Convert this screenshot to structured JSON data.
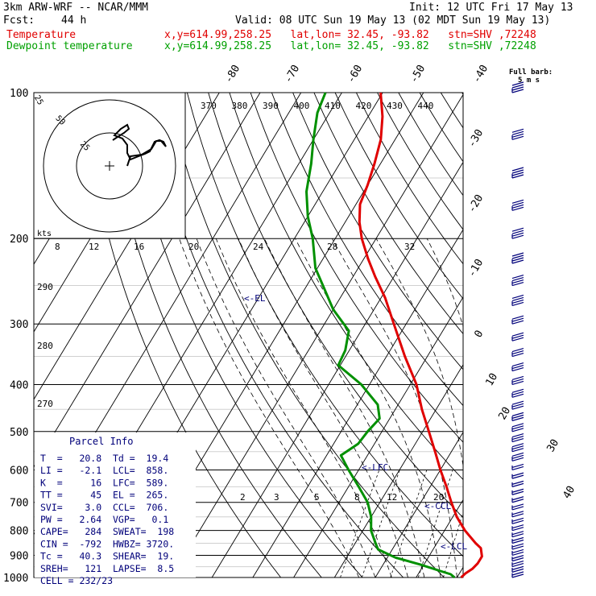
{
  "header": {
    "model": "3km ARW-WRF -- NCAR/MMM",
    "init": "Init: 12 UTC Fri 17 May 13",
    "fcst_label": "Fcst:",
    "fcst_value": "44 h",
    "valid": "Valid: 08 UTC Sun 19 May 13 (02 MDT Sun 19 May 13)",
    "temperature_label": "Temperature",
    "temperature_info": "x,y=614.99,258.25   lat,lon= 32.45, -93.82   stn=SHV ,72248",
    "dewpoint_label": "Dewpoint temperature",
    "dewpoint_info": "x,y=614.99,258.25   lat,lon= 32.45, -93.82   stn=SHV ,72248"
  },
  "colors": {
    "temperature": "#e00000",
    "dewpoint": "#009000",
    "text_blue": "#00007a",
    "gridlines": "#000000",
    "isotherm_light": "#c0c0c0"
  },
  "barb_legend": {
    "line1": "Full barb:",
    "line2": "5 m s"
  },
  "hodograph": {
    "ring_labels": [
      "25",
      "50",
      "25"
    ],
    "units": "kts"
  },
  "theta_labels": [
    "370",
    "380",
    "390",
    "400",
    "410",
    "420",
    "430",
    "440"
  ],
  "top_temp_labels": [
    "-80",
    "-70",
    "-60",
    "-50",
    "-40"
  ],
  "right_temp_labels": [
    "-30",
    "-20",
    "-10",
    "0",
    "10",
    "20",
    "30",
    "40"
  ],
  "mixing_ratio_top": [
    "8",
    "12",
    "16",
    "20",
    "24",
    "28",
    "32"
  ],
  "mixing_ratio_low": [
    "2",
    "3",
    "5",
    "8",
    "12",
    "20"
  ],
  "left_theta_labels": [
    "290",
    "280",
    "270"
  ],
  "parcel_markers": {
    "el": "<-EL",
    "lfc": "<-LFC",
    "ccl": "<-CCL",
    "lcl": "<-LCL"
  },
  "parcel_info": {
    "title": "Parcel Info",
    "rows": [
      "T  =   20.8  Td =  19.4",
      "LI =   -2.1  LCL=  858.",
      "K  =     16  LFC=  589.",
      "TT =     45  EL =  265.",
      "SVI=    3.0  CCL=  706.",
      "PW =   2.64  VGP=   0.1",
      "CAPE=   284  SWEAT=  198",
      "CIN =  -792  HWBZ= 3720.",
      "Tc =   40.3  SHEAR=  19.",
      "SREH=   121  LAPSE=  8.5",
      "CELL = 232/23"
    ]
  },
  "chart_data": {
    "type": "line",
    "chart_kind": "skew-T log-p sounding",
    "y_axis": "pressure (hPa), log scale",
    "ylim": [
      1000,
      100
    ],
    "pressure_ticks": [
      100,
      200,
      300,
      400,
      500,
      600,
      700,
      800,
      900,
      1000
    ],
    "series": [
      {
        "name": "Temperature",
        "color": "#e00000",
        "points": [
          {
            "p": 1000,
            "t": 21.0
          },
          {
            "p": 980,
            "t": 21.5
          },
          {
            "p": 960,
            "t": 22.5
          },
          {
            "p": 935,
            "t": 23.0
          },
          {
            "p": 905,
            "t": 23.0
          },
          {
            "p": 870,
            "t": 21.5
          },
          {
            "p": 850,
            "t": 19.5
          },
          {
            "p": 800,
            "t": 15.0
          },
          {
            "p": 750,
            "t": 11.0
          },
          {
            "p": 700,
            "t": 7.5
          },
          {
            "p": 650,
            "t": 4.0
          },
          {
            "p": 600,
            "t": 0.0
          },
          {
            "p": 550,
            "t": -4.0
          },
          {
            "p": 500,
            "t": -8.5
          },
          {
            "p": 450,
            "t": -13.5
          },
          {
            "p": 400,
            "t": -18.5
          },
          {
            "p": 350,
            "t": -25.5
          },
          {
            "p": 300,
            "t": -33.0
          },
          {
            "p": 265,
            "t": -39.0
          },
          {
            "p": 240,
            "t": -44.5
          },
          {
            "p": 220,
            "t": -49.0
          },
          {
            "p": 200,
            "t": -53.5
          },
          {
            "p": 185,
            "t": -56.5
          },
          {
            "p": 170,
            "t": -59.0
          },
          {
            "p": 155,
            "t": -60.0
          },
          {
            "p": 140,
            "t": -61.5
          },
          {
            "p": 125,
            "t": -63.5
          },
          {
            "p": 112,
            "t": -66.5
          },
          {
            "p": 100,
            "t": -70.5
          }
        ]
      },
      {
        "name": "Dewpoint temperature",
        "color": "#009000",
        "points": [
          {
            "p": 1000,
            "t": 19.4
          },
          {
            "p": 985,
            "t": 18.0
          },
          {
            "p": 970,
            "t": 15.0
          },
          {
            "p": 940,
            "t": 9.0
          },
          {
            "p": 910,
            "t": 2.0
          },
          {
            "p": 875,
            "t": -3.5
          },
          {
            "p": 850,
            "t": -5.0
          },
          {
            "p": 800,
            "t": -8.0
          },
          {
            "p": 750,
            "t": -10.0
          },
          {
            "p": 700,
            "t": -13.0
          },
          {
            "p": 650,
            "t": -17.5
          },
          {
            "p": 600,
            "t": -22.5
          },
          {
            "p": 560,
            "t": -26.5
          },
          {
            "p": 530,
            "t": -24.0
          },
          {
            "p": 500,
            "t": -23.5
          },
          {
            "p": 470,
            "t": -22.5
          },
          {
            "p": 440,
            "t": -25.0
          },
          {
            "p": 400,
            "t": -32.0
          },
          {
            "p": 365,
            "t": -40.5
          },
          {
            "p": 340,
            "t": -41.0
          },
          {
            "p": 310,
            "t": -43.0
          },
          {
            "p": 280,
            "t": -50.0
          },
          {
            "p": 255,
            "t": -55.0
          },
          {
            "p": 230,
            "t": -60.5
          },
          {
            "p": 200,
            "t": -65.5
          },
          {
            "p": 180,
            "t": -70.0
          },
          {
            "p": 160,
            "t": -74.0
          },
          {
            "p": 140,
            "t": -77.0
          },
          {
            "p": 125,
            "t": -80.0
          },
          {
            "p": 110,
            "t": -83.0
          },
          {
            "p": 100,
            "t": -84.0
          }
        ]
      }
    ],
    "wind_speed_unit": "m s-1",
    "hodograph_units": "kts"
  }
}
